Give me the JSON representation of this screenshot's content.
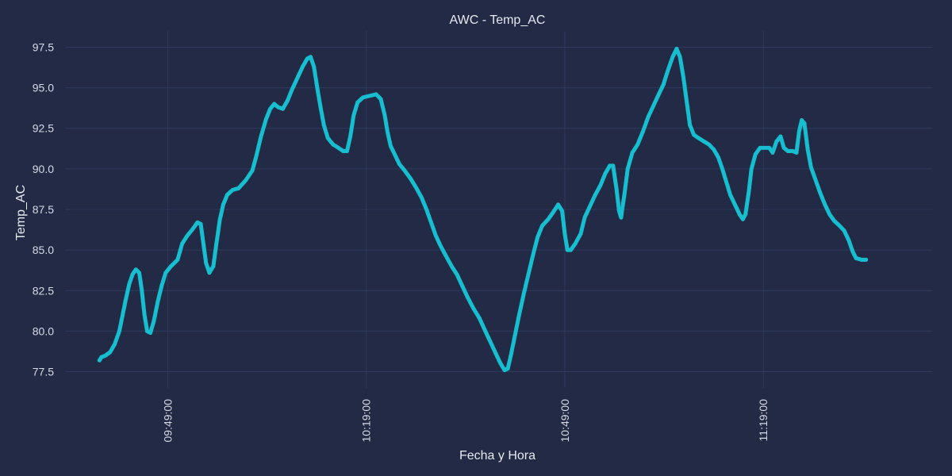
{
  "chart_data": {
    "type": "scatter",
    "title": "AWC - Temp_AC",
    "xlabel": "Fecha y Hora",
    "ylabel": "Temp_AC",
    "grid": true,
    "x_tick_labels": [
      "09:49:00",
      "10:19:00",
      "10:49:00",
      "11:19:00"
    ],
    "x_tick_minutes": [
      0,
      30,
      60,
      90
    ],
    "xlim_minutes": [
      -15.5,
      115.5
    ],
    "y_ticks": [
      77.5,
      80.0,
      82.5,
      85.0,
      87.5,
      90.0,
      92.5,
      95.0,
      97.5
    ],
    "ylim": [
      76.5,
      98.5
    ],
    "colors": {
      "background": "#222a45",
      "grid": "#2f3a5c",
      "point": "#17becf"
    },
    "series": [
      {
        "name": "",
        "points": [
          [
            -10.3,
            78.2
          ],
          [
            -10.0,
            78.4
          ],
          [
            -9.4,
            78.5
          ],
          [
            -8.7,
            78.7
          ],
          [
            -8.0,
            79.2
          ],
          [
            -7.3,
            80.0
          ],
          [
            -6.8,
            81.0
          ],
          [
            -6.3,
            82.0
          ],
          [
            -5.8,
            82.9
          ],
          [
            -5.3,
            83.5
          ],
          [
            -4.8,
            83.8
          ],
          [
            -4.3,
            83.6
          ],
          [
            -3.9,
            82.5
          ],
          [
            -3.5,
            81.0
          ],
          [
            -3.1,
            80.0
          ],
          [
            -2.6,
            79.9
          ],
          [
            -2.1,
            80.6
          ],
          [
            -1.5,
            81.8
          ],
          [
            -0.9,
            82.8
          ],
          [
            -0.3,
            83.6
          ],
          [
            0.5,
            84.0
          ],
          [
            1.5,
            84.4
          ],
          [
            2.2,
            85.4
          ],
          [
            3.0,
            85.9
          ],
          [
            3.8,
            86.3
          ],
          [
            4.5,
            86.7
          ],
          [
            5.0,
            86.6
          ],
          [
            5.4,
            85.4
          ],
          [
            5.8,
            84.2
          ],
          [
            6.3,
            83.6
          ],
          [
            6.9,
            84.0
          ],
          [
            7.4,
            85.5
          ],
          [
            7.9,
            86.9
          ],
          [
            8.4,
            87.8
          ],
          [
            9.0,
            88.4
          ],
          [
            9.8,
            88.7
          ],
          [
            10.7,
            88.8
          ],
          [
            11.8,
            89.3
          ],
          [
            12.8,
            89.9
          ],
          [
            13.4,
            90.8
          ],
          [
            14.1,
            92.0
          ],
          [
            14.9,
            93.1
          ],
          [
            15.5,
            93.7
          ],
          [
            16.1,
            94.0
          ],
          [
            16.7,
            93.8
          ],
          [
            17.4,
            93.7
          ],
          [
            18.1,
            94.2
          ],
          [
            18.8,
            94.9
          ],
          [
            19.6,
            95.6
          ],
          [
            20.4,
            96.3
          ],
          [
            21.1,
            96.8
          ],
          [
            21.6,
            96.9
          ],
          [
            22.1,
            96.3
          ],
          [
            22.6,
            95.0
          ],
          [
            23.1,
            93.8
          ],
          [
            23.6,
            92.7
          ],
          [
            24.2,
            91.9
          ],
          [
            25.0,
            91.5
          ],
          [
            25.8,
            91.3
          ],
          [
            26.5,
            91.1
          ],
          [
            27.1,
            91.1
          ],
          [
            27.6,
            92.0
          ],
          [
            28.1,
            93.3
          ],
          [
            28.7,
            94.1
          ],
          [
            29.5,
            94.4
          ],
          [
            30.5,
            94.5
          ],
          [
            31.5,
            94.6
          ],
          [
            32.2,
            94.3
          ],
          [
            32.8,
            93.3
          ],
          [
            33.2,
            92.3
          ],
          [
            33.7,
            91.4
          ],
          [
            34.3,
            90.9
          ],
          [
            35.0,
            90.3
          ],
          [
            35.8,
            89.9
          ],
          [
            36.7,
            89.4
          ],
          [
            37.6,
            88.8
          ],
          [
            38.4,
            88.2
          ],
          [
            39.1,
            87.5
          ],
          [
            39.8,
            86.7
          ],
          [
            40.5,
            85.9
          ],
          [
            41.3,
            85.2
          ],
          [
            42.1,
            84.6
          ],
          [
            42.9,
            84.0
          ],
          [
            43.7,
            83.5
          ],
          [
            44.5,
            82.8
          ],
          [
            45.3,
            82.1
          ],
          [
            46.2,
            81.4
          ],
          [
            47.1,
            80.8
          ],
          [
            48.0,
            80.0
          ],
          [
            48.8,
            79.3
          ],
          [
            49.6,
            78.6
          ],
          [
            50.3,
            78.0
          ],
          [
            50.9,
            77.6
          ],
          [
            51.4,
            77.7
          ],
          [
            51.9,
            78.6
          ],
          [
            52.5,
            79.8
          ],
          [
            53.1,
            81.0
          ],
          [
            53.8,
            82.3
          ],
          [
            54.5,
            83.5
          ],
          [
            55.2,
            84.7
          ],
          [
            55.9,
            85.8
          ],
          [
            56.6,
            86.5
          ],
          [
            57.5,
            86.9
          ],
          [
            58.2,
            87.3
          ],
          [
            59.0,
            87.8
          ],
          [
            59.6,
            87.4
          ],
          [
            60.0,
            86.0
          ],
          [
            60.4,
            85.0
          ],
          [
            60.9,
            85.0
          ],
          [
            61.6,
            85.4
          ],
          [
            62.4,
            86.0
          ],
          [
            63.0,
            87.0
          ],
          [
            63.8,
            87.7
          ],
          [
            64.6,
            88.4
          ],
          [
            65.4,
            89.0
          ],
          [
            66.1,
            89.7
          ],
          [
            66.8,
            90.2
          ],
          [
            67.3,
            90.2
          ],
          [
            67.8,
            88.8
          ],
          [
            68.2,
            87.4
          ],
          [
            68.5,
            87.0
          ],
          [
            69.0,
            88.4
          ],
          [
            69.5,
            90.0
          ],
          [
            70.2,
            91.0
          ],
          [
            71.0,
            91.5
          ],
          [
            71.8,
            92.3
          ],
          [
            72.6,
            93.2
          ],
          [
            73.4,
            93.9
          ],
          [
            74.2,
            94.6
          ],
          [
            74.9,
            95.2
          ],
          [
            75.6,
            96.1
          ],
          [
            76.3,
            96.9
          ],
          [
            76.9,
            97.4
          ],
          [
            77.4,
            96.9
          ],
          [
            77.9,
            95.7
          ],
          [
            78.4,
            94.2
          ],
          [
            78.9,
            92.7
          ],
          [
            79.5,
            92.1
          ],
          [
            80.2,
            91.9
          ],
          [
            81.0,
            91.7
          ],
          [
            81.8,
            91.5
          ],
          [
            82.5,
            91.2
          ],
          [
            83.2,
            90.7
          ],
          [
            83.8,
            90.0
          ],
          [
            84.4,
            89.2
          ],
          [
            85.0,
            88.4
          ],
          [
            85.7,
            87.8
          ],
          [
            86.4,
            87.2
          ],
          [
            86.9,
            86.9
          ],
          [
            87.3,
            87.2
          ],
          [
            87.8,
            88.6
          ],
          [
            88.2,
            90.0
          ],
          [
            88.8,
            90.9
          ],
          [
            89.5,
            91.3
          ],
          [
            90.2,
            91.3
          ],
          [
            90.9,
            91.3
          ],
          [
            91.4,
            91.0
          ],
          [
            92.0,
            91.7
          ],
          [
            92.6,
            92.0
          ],
          [
            93.1,
            91.3
          ],
          [
            93.7,
            91.1
          ],
          [
            94.4,
            91.1
          ],
          [
            95.0,
            91.0
          ],
          [
            95.4,
            92.3
          ],
          [
            95.8,
            93.0
          ],
          [
            96.2,
            92.8
          ],
          [
            96.7,
            91.2
          ],
          [
            97.2,
            90.1
          ],
          [
            97.9,
            89.3
          ],
          [
            98.6,
            88.5
          ],
          [
            99.3,
            87.8
          ],
          [
            100.0,
            87.2
          ],
          [
            100.7,
            86.8
          ],
          [
            101.5,
            86.5
          ],
          [
            102.2,
            86.2
          ],
          [
            102.9,
            85.6
          ],
          [
            103.5,
            84.9
          ],
          [
            104.0,
            84.5
          ],
          [
            104.8,
            84.4
          ],
          [
            105.5,
            84.4
          ]
        ]
      }
    ]
  }
}
